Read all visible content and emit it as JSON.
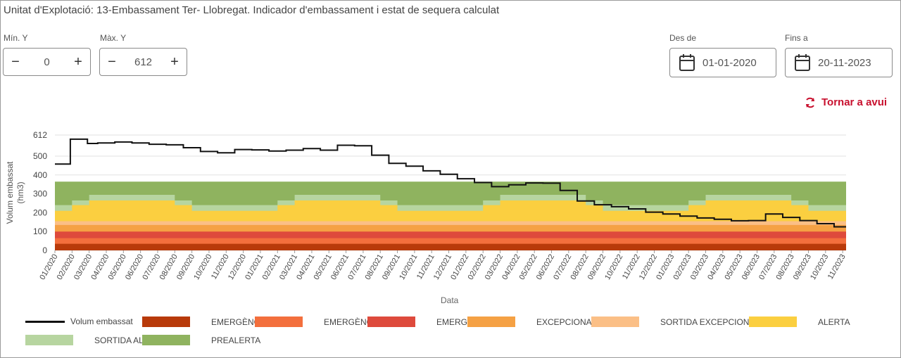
{
  "header": {
    "title": "Unitat d'Explotació: 13-Embassament Ter- Llobregat. Indicador d'embassament i estat de sequera calculat"
  },
  "controls": {
    "min_y": {
      "label": "Mín. Y",
      "value": "0",
      "minus": "−",
      "plus": "+"
    },
    "max_y": {
      "label": "Màx. Y",
      "value": "612",
      "minus": "−",
      "plus": "+"
    },
    "from": {
      "label": "Des de",
      "value": "01-01-2020"
    },
    "to": {
      "label": "Fins a",
      "value": "20-11-2023"
    },
    "reset_label": "Tornar a avui"
  },
  "colors": {
    "emergencia3": "#b83a0a",
    "emergencia2": "#f36f3d",
    "emergencia": "#de4a3c",
    "excepcionalitat": "#f5a144",
    "sortida_excepcionalitat": "#fbbf86",
    "alerta": "#fbcf40",
    "sortida_alerta": "#b7d5a0",
    "prealerta": "#8fb35f",
    "volum": "#111111",
    "accent": "#c8102e"
  },
  "chart_data": {
    "type": "area",
    "xlabel": "Data",
    "ylabel": "Volum embassat (hm3)",
    "ylim": [
      0,
      612
    ],
    "yticks": [
      0,
      100,
      200,
      300,
      400,
      500,
      612
    ],
    "grid": true,
    "x_ticks": [
      "01/2020",
      "02/2020",
      "03/2020",
      "04/2020",
      "05/2020",
      "06/2020",
      "07/2020",
      "08/2020",
      "09/2020",
      "10/2020",
      "11/2020",
      "12/2020",
      "01/2021",
      "02/2021",
      "03/2021",
      "04/2021",
      "05/2021",
      "06/2021",
      "07/2021",
      "08/2021",
      "09/2021",
      "10/2021",
      "11/2021",
      "12/2021",
      "01/2022",
      "02/2022",
      "03/2022",
      "04/2022",
      "05/2022",
      "06/2022",
      "07/2022",
      "08/2022",
      "09/2022",
      "10/2022",
      "11/2022",
      "12/2022",
      "01/2023",
      "02/2023",
      "03/2023",
      "04/2023",
      "05/2023",
      "06/2023",
      "07/2023",
      "08/2023",
      "09/2023",
      "10/2023",
      "11/2023"
    ],
    "month_profile": {
      "emergencia3": [
        35,
        35,
        35,
        35,
        35,
        35,
        35,
        35,
        35,
        35,
        35,
        35
      ],
      "emergencia2": [
        65,
        65,
        65,
        65,
        65,
        65,
        65,
        65,
        65,
        65,
        65,
        65
      ],
      "emergencia": [
        100,
        100,
        100,
        100,
        100,
        100,
        100,
        100,
        100,
        100,
        100,
        100
      ],
      "excepcionalitat": [
        135,
        135,
        135,
        135,
        135,
        135,
        135,
        135,
        135,
        135,
        135,
        135
      ],
      "sortida_excepcionalitat": [
        155,
        155,
        155,
        155,
        155,
        155,
        155,
        155,
        155,
        155,
        155,
        155
      ],
      "alerta": [
        210,
        240,
        265,
        265,
        265,
        265,
        265,
        240,
        210,
        210,
        210,
        210
      ],
      "sortida_alerta": [
        240,
        265,
        295,
        295,
        295,
        295,
        295,
        265,
        240,
        240,
        240,
        240
      ],
      "prealerta": [
        365,
        365,
        365,
        365,
        365,
        365,
        365,
        365,
        365,
        365,
        365,
        365
      ]
    },
    "series": [
      {
        "name": "Volum embassat",
        "type": "step",
        "x": [
          0,
          0.9,
          1.9,
          2.5,
          3.5,
          4.5,
          5.5,
          6.5,
          7.5,
          8.5,
          9.5,
          10.5,
          11.5,
          12.5,
          13.5,
          14.5,
          15.5,
          16.5,
          17.5,
          18.5,
          19.5,
          20.5,
          21.5,
          22.5,
          23.5,
          24.5,
          25.5,
          26.5,
          27.5,
          28.5,
          29.5,
          30.5,
          31.5,
          32.5,
          33.5,
          34.5,
          35.5,
          36.5,
          37.5,
          38.5,
          39.5,
          40.5,
          41.5,
          42.5,
          43.5,
          44.5,
          45.5,
          46.2
        ],
        "values": [
          458,
          590,
          567,
          570,
          575,
          570,
          563,
          560,
          545,
          525,
          518,
          535,
          533,
          527,
          532,
          540,
          532,
          558,
          555,
          505,
          462,
          447,
          422,
          404,
          380,
          360,
          338,
          348,
          358,
          357,
          318,
          262,
          242,
          232,
          220,
          203,
          193,
          182,
          172,
          165,
          157,
          158,
          193,
          175,
          158,
          142,
          125,
          125
        ]
      }
    ],
    "legend": [
      {
        "key": "volum",
        "label": "Volum embassat",
        "kind": "line"
      },
      {
        "key": "emergencia3",
        "label": "EMERGÈNCIA III",
        "kind": "box"
      },
      {
        "key": "emergencia2",
        "label": "EMERGÈNCIA II",
        "kind": "box"
      },
      {
        "key": "emergencia",
        "label": "EMERGÈNCIA",
        "kind": "box"
      },
      {
        "key": "excepcionalitat",
        "label": "EXCEPCIONALITAT",
        "kind": "box"
      },
      {
        "key": "sortida_excepcionalitat",
        "label": "SORTIDA EXCEPCIONALITAT",
        "kind": "box"
      },
      {
        "key": "alerta",
        "label": "ALERTA",
        "kind": "box"
      },
      {
        "key": "sortida_alerta",
        "label": "SORTIDA ALERTA",
        "kind": "box"
      },
      {
        "key": "prealerta",
        "label": "PREALERTA",
        "kind": "box"
      }
    ]
  }
}
